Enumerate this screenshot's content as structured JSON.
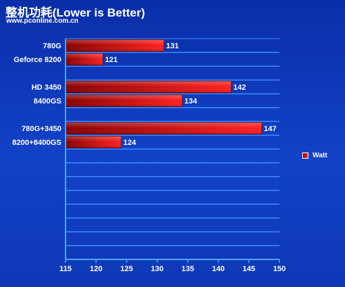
{
  "chart_data": {
    "type": "bar",
    "orientation": "horizontal",
    "title": "整机功耗(Lower is Better)",
    "subtitle": "www.pconline.com.cn",
    "categories": [
      "780G",
      "Geforce 8200",
      "HD 3450",
      "8400GS",
      "780G+3450",
      "8200+8400GS"
    ],
    "groups": [
      [
        0,
        1
      ],
      [
        2,
        3
      ],
      [
        4,
        5
      ]
    ],
    "series": [
      {
        "name": "Watt",
        "values": [
          131,
          121,
          142,
          134,
          147,
          124
        ]
      }
    ],
    "xlim": [
      115,
      150
    ],
    "xticks": [
      115,
      120,
      125,
      130,
      135,
      140,
      145,
      150
    ],
    "grid": true,
    "legend_position": "right",
    "colors": {
      "bar_dark": "#8a0000",
      "bar_light": "#ff2020",
      "background": "#1242c8",
      "grid": "#3d8cff"
    }
  }
}
